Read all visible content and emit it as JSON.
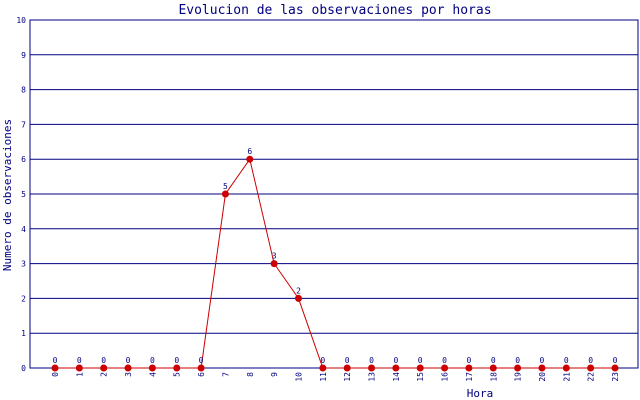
{
  "chart_data": {
    "type": "line",
    "title": "Evolucion de las observaciones por horas",
    "xlabel": "Hora",
    "ylabel": "Numero de observaciones",
    "categories": [
      "0",
      "1",
      "2",
      "3",
      "4",
      "5",
      "6",
      "7",
      "8",
      "9",
      "10",
      "11",
      "12",
      "13",
      "14",
      "15",
      "16",
      "17",
      "18",
      "19",
      "20",
      "21",
      "22",
      "23"
    ],
    "values": [
      0,
      0,
      0,
      0,
      0,
      0,
      0,
      5,
      6,
      3,
      2,
      0,
      0,
      0,
      0,
      0,
      0,
      0,
      0,
      0,
      0,
      0,
      0,
      0
    ],
    "ylim": [
      0,
      10
    ],
    "yticks": [
      "0",
      "1",
      "2",
      "3",
      "4",
      "5",
      "6",
      "7",
      "8",
      "9",
      "10"
    ],
    "grid": true,
    "colors": {
      "grid": "#000080",
      "line": "#cc0000",
      "marker": "#cc0000",
      "text": "#000080"
    }
  }
}
